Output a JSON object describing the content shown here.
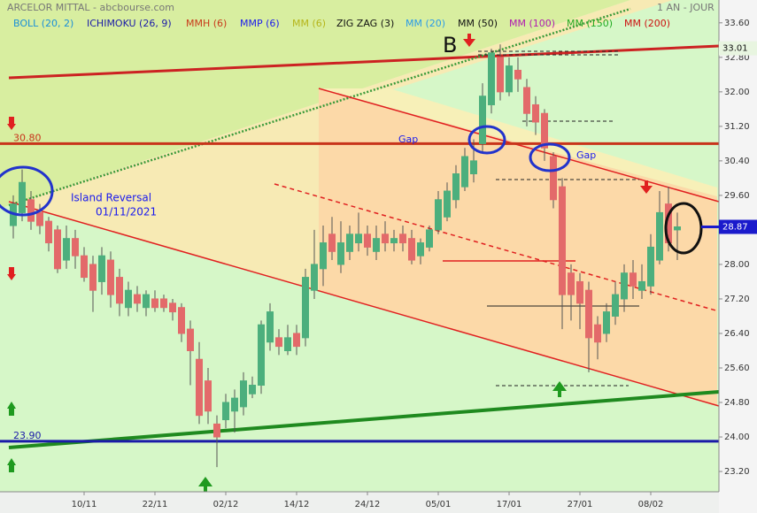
{
  "chart_data": {
    "type": "candlestick",
    "title": "ARCELOR MITTAL - abcbourse.com",
    "period": "1 AN - JOUR",
    "indicators": [
      {
        "name": "BOLL (20, 2)",
        "color": "#1a8fd8"
      },
      {
        "name": "ICHIMOKU (26, 9)",
        "color": "#1a1aa8"
      },
      {
        "name": "MMH (6)",
        "color": "#c83a1a"
      },
      {
        "name": "MMP (6)",
        "color": "#1a1aee"
      },
      {
        "name": "MM (6)",
        "color": "#b5b51a"
      },
      {
        "name": "ZIG ZAG (3)",
        "color": "#111111"
      },
      {
        "name": "MM (20)",
        "color": "#2a9be8"
      },
      {
        "name": "MM (50)",
        "color": "#111111"
      },
      {
        "name": "MM (100)",
        "color": "#b01ab0"
      },
      {
        "name": "MM (150)",
        "color": "#22aa22"
      },
      {
        "name": "MM (200)",
        "color": "#cc1111"
      }
    ],
    "annotations": [
      "B",
      "Gap",
      "Gap",
      "Island Reversal",
      "01/11/2021"
    ],
    "categories": [
      null,
      null,
      null,
      null,
      null,
      null,
      null,
      null,
      "10/11",
      null,
      null,
      null,
      null,
      null,
      null,
      null,
      "22/11",
      null,
      null,
      null,
      null,
      null,
      null,
      null,
      "02/12",
      null,
      null,
      null,
      null,
      null,
      null,
      null,
      "14/12",
      null,
      null,
      null,
      null,
      null,
      null,
      null,
      "24/12",
      null,
      null,
      null,
      null,
      null,
      null,
      null,
      "05/01",
      null,
      null,
      null,
      null,
      null,
      null,
      null,
      "17/01",
      null,
      null,
      null,
      null,
      null,
      null,
      null,
      "27/01",
      null,
      null,
      null,
      null,
      null,
      null,
      null,
      "08/02",
      null,
      null,
      null
    ],
    "open": [
      28.9,
      29.2,
      29.5,
      29.2,
      29.0,
      28.8,
      28.1,
      28.6,
      28.2,
      28.0,
      27.6,
      28.1,
      27.7,
      27.0,
      27.3,
      27.0,
      27.2,
      27.2,
      27.1,
      27.0,
      26.5,
      25.8,
      25.3,
      24.3,
      24.4,
      24.6,
      24.7,
      25.0,
      25.2,
      26.2,
      26.3,
      26.0,
      26.4,
      26.3,
      27.4,
      27.9,
      28.7,
      28.0,
      28.3,
      28.5,
      28.7,
      28.3,
      28.7,
      28.5,
      28.7,
      28.6,
      28.2,
      28.4,
      28.8,
      29.1,
      29.5,
      29.8,
      30.1,
      30.8,
      31.7,
      32.8,
      32.0,
      32.5,
      32.1,
      31.7,
      31.5,
      30.5,
      29.8,
      27.8,
      27.6,
      27.4,
      26.6,
      26.4,
      26.8,
      27.2,
      27.8,
      27.4,
      27.5,
      28.1,
      29.4,
      28.8
    ],
    "high": [
      29.6,
      30.2,
      29.7,
      29.4,
      29.1,
      28.9,
      28.9,
      28.8,
      28.4,
      28.2,
      28.4,
      28.3,
      27.9,
      27.6,
      27.5,
      27.4,
      27.4,
      27.3,
      27.2,
      27.1,
      26.7,
      26.2,
      25.6,
      24.5,
      25.0,
      25.1,
      25.5,
      25.4,
      26.7,
      27.1,
      26.5,
      26.6,
      26.6,
      27.9,
      28.8,
      28.9,
      29.1,
      29.0,
      28.9,
      29.2,
      28.9,
      28.9,
      29.0,
      28.8,
      28.9,
      28.8,
      28.6,
      28.9,
      29.7,
      29.9,
      30.3,
      30.7,
      30.9,
      32.2,
      33.0,
      33.1,
      32.8,
      32.8,
      32.3,
      31.9,
      31.6,
      30.6,
      30.0,
      28.0,
      27.8,
      27.6,
      26.8,
      27.1,
      27.6,
      28.0,
      28.1,
      28.0,
      28.7,
      29.7,
      29.8,
      29.2
    ],
    "low": [
      28.6,
      29.0,
      28.8,
      28.7,
      28.3,
      27.8,
      27.9,
      27.9,
      27.6,
      26.9,
      27.3,
      27.0,
      26.8,
      26.8,
      26.9,
      26.8,
      26.9,
      26.9,
      26.7,
      26.2,
      25.2,
      24.3,
      24.3,
      23.3,
      24.2,
      24.1,
      24.5,
      24.9,
      25.0,
      26.0,
      25.9,
      25.9,
      25.9,
      26.1,
      27.2,
      27.5,
      28.1,
      27.8,
      28.1,
      28.3,
      28.2,
      28.1,
      28.3,
      28.3,
      28.3,
      28.0,
      28.0,
      28.3,
      28.7,
      29.0,
      29.3,
      29.7,
      29.9,
      30.6,
      31.5,
      31.8,
      31.9,
      32.0,
      31.2,
      31.0,
      30.4,
      29.3,
      26.5,
      26.7,
      26.5,
      25.5,
      25.8,
      26.2,
      26.6,
      26.9,
      27.2,
      27.2,
      27.3,
      28.0,
      28.3,
      28.1
    ],
    "close": [
      29.4,
      29.9,
      29.0,
      28.9,
      28.5,
      27.9,
      28.6,
      28.2,
      27.7,
      27.4,
      28.2,
      27.3,
      27.1,
      27.4,
      27.1,
      27.3,
      27.0,
      27.0,
      26.9,
      26.4,
      26.0,
      24.5,
      24.6,
      24.0,
      24.8,
      24.9,
      25.3,
      25.2,
      26.6,
      26.9,
      26.1,
      26.3,
      26.1,
      27.7,
      28.0,
      28.5,
      28.3,
      28.5,
      28.7,
      28.7,
      28.4,
      28.6,
      28.5,
      28.6,
      28.5,
      28.1,
      28.5,
      28.8,
      29.5,
      29.7,
      30.1,
      30.5,
      30.4,
      31.9,
      32.9,
      32.0,
      32.6,
      32.3,
      31.5,
      31.3,
      30.7,
      29.5,
      27.3,
      27.3,
      27.1,
      26.3,
      26.2,
      26.9,
      27.3,
      27.8,
      27.5,
      27.6,
      28.4,
      29.2,
      28.5,
      28.87
    ],
    "up_color": "#4caf7d",
    "down_color": "#e36a6a",
    "ylim": [
      22.75,
      33.76
    ],
    "yticks": [
      {
        "value": 23.2,
        "label": "23.20"
      },
      {
        "value": 24.0,
        "label": "24.00"
      },
      {
        "value": 24.8,
        "label": "24.80"
      },
      {
        "value": 25.6,
        "label": "25.60"
      },
      {
        "value": 26.4,
        "label": "26.40"
      },
      {
        "value": 27.2,
        "label": "27.20"
      },
      {
        "value": 28.0,
        "label": "28.00"
      },
      {
        "value": 28.8,
        "label": "28.80"
      },
      {
        "value": 29.6,
        "label": "29.60"
      },
      {
        "value": 30.4,
        "label": "30.40"
      },
      {
        "value": 31.2,
        "label": "31.20"
      },
      {
        "value": 32.0,
        "label": "32.00"
      },
      {
        "value": 32.8,
        "label": "32.80"
      },
      {
        "value": 33.6,
        "label": "33.60"
      }
    ],
    "levels": [
      {
        "value": 30.8,
        "label": "30.80",
        "color": "#c8341b"
      },
      {
        "value": 23.9,
        "label": "23.90",
        "color": "#1a1aa8"
      }
    ],
    "markers": [
      {
        "value": 33.01,
        "color": "#e8f5e0"
      },
      {
        "value": 28.87,
        "color": "#1a1acc"
      }
    ],
    "grid": false
  }
}
